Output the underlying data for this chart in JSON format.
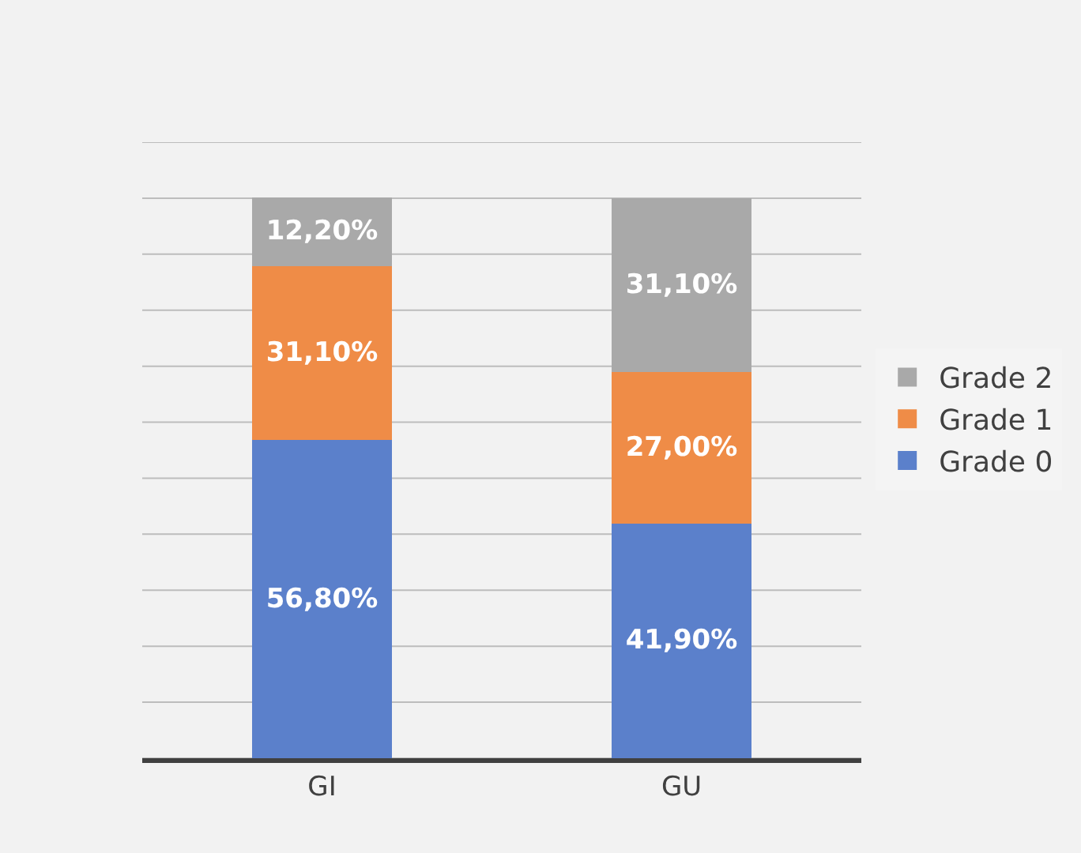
{
  "chart_data": {
    "type": "bar",
    "stacked": true,
    "categories": [
      "GI",
      "GU"
    ],
    "series": [
      {
        "name": "Grade 0",
        "color": "#5b80cb",
        "values": [
          56.8,
          41.9
        ],
        "value_labels": [
          "56,80%",
          "41,90%"
        ]
      },
      {
        "name": "Grade 1",
        "color": "#ef8c47",
        "values": [
          31.1,
          27.0
        ],
        "value_labels": [
          "31,10%",
          "27,00%"
        ]
      },
      {
        "name": "Grade 2",
        "color": "#a9a9a9",
        "values": [
          12.2,
          31.1
        ],
        "value_labels": [
          "12,20%",
          "31,10%"
        ]
      }
    ],
    "ylim": [
      0,
      110
    ],
    "yticks": [
      {
        "value": 0,
        "label": null
      },
      {
        "value": 10,
        "label": null
      },
      {
        "value": 20,
        "label": null
      },
      {
        "value": 30,
        "label": null
      },
      {
        "value": 40,
        "label": null
      },
      {
        "value": 50,
        "label": null
      },
      {
        "value": 60,
        "label": null
      },
      {
        "value": 70,
        "label": null
      },
      {
        "value": 80,
        "label": null
      },
      {
        "value": 90,
        "label": null
      },
      {
        "value": 100,
        "label": null
      },
      {
        "value": 110,
        "label": null
      }
    ],
    "grid": "y",
    "legend": "right",
    "tick_labels": "x"
  }
}
